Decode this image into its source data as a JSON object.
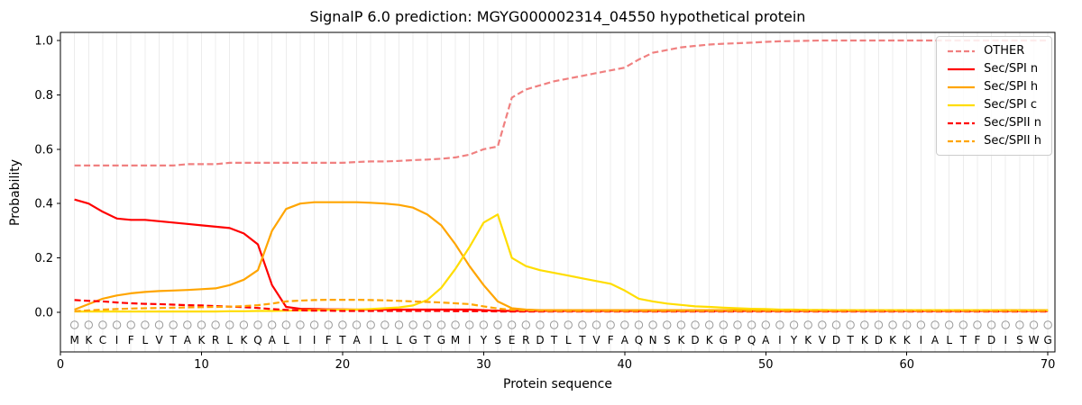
{
  "chart_data": {
    "type": "line",
    "title": "SignalP 6.0 prediction: MGYG000002314_04550 hypothetical protein",
    "xlabel": "Protein sequence",
    "ylabel": "Probability",
    "xlim": [
      0,
      70.5
    ],
    "ylim": [
      -0.146,
      1.03
    ],
    "xticks": [
      0,
      10,
      20,
      30,
      40,
      50,
      60,
      70
    ],
    "yticks": [
      0.0,
      0.2,
      0.4,
      0.6,
      0.8,
      1.0
    ],
    "grid": "vertical line at every residue position",
    "legend_position": "upper right",
    "sequence": "MKCIFLVTAKRLKQALIIFTAILLGTGMIYSERDTLTVFAQNSKDKGPQAIYKVDTKDKKIALTFDISWG",
    "series": [
      {
        "name": "OTHER",
        "color": "#f08080",
        "dash": true,
        "values": [
          0.54,
          0.54,
          0.54,
          0.54,
          0.54,
          0.54,
          0.54,
          0.54,
          0.545,
          0.545,
          0.545,
          0.55,
          0.55,
          0.55,
          0.55,
          0.55,
          0.55,
          0.55,
          0.55,
          0.55,
          0.553,
          0.555,
          0.555,
          0.557,
          0.56,
          0.562,
          0.565,
          0.57,
          0.58,
          0.6,
          0.61,
          0.79,
          0.82,
          0.835,
          0.85,
          0.86,
          0.87,
          0.88,
          0.89,
          0.9,
          0.93,
          0.955,
          0.965,
          0.975,
          0.98,
          0.985,
          0.988,
          0.99,
          0.992,
          0.995,
          0.997,
          0.998,
          0.999,
          1.0,
          1.0,
          1.0,
          1.0,
          1.0,
          1.0,
          1.0,
          1.0,
          1.0,
          1.0,
          1.0,
          1.0,
          1.0,
          1.0,
          1.0,
          1.0,
          1.0
        ]
      },
      {
        "name": "Sec/SPI n",
        "color": "#ff0000",
        "dash": false,
        "values": [
          0.415,
          0.4,
          0.37,
          0.345,
          0.34,
          0.34,
          0.335,
          0.33,
          0.325,
          0.32,
          0.315,
          0.31,
          0.29,
          0.25,
          0.1,
          0.02,
          0.013,
          0.012,
          0.011,
          0.011,
          0.01,
          0.01,
          0.01,
          0.01,
          0.01,
          0.01,
          0.01,
          0.01,
          0.01,
          0.008,
          0.006,
          0.005,
          0.005,
          0.005,
          0.005,
          0.005,
          0.005,
          0.005,
          0.005,
          0.005,
          0.005,
          0.005,
          0.005,
          0.005,
          0.005,
          0.005,
          0.005,
          0.005,
          0.005,
          0.005,
          0.005,
          0.005,
          0.005,
          0.005,
          0.005,
          0.005,
          0.005,
          0.005,
          0.005,
          0.005,
          0.005,
          0.005,
          0.005,
          0.005,
          0.005,
          0.005,
          0.005,
          0.005,
          0.005,
          0.005
        ]
      },
      {
        "name": "Sec/SPI h",
        "color": "#ffa500",
        "dash": false,
        "values": [
          0.01,
          0.03,
          0.05,
          0.062,
          0.07,
          0.075,
          0.078,
          0.08,
          0.082,
          0.085,
          0.088,
          0.1,
          0.12,
          0.155,
          0.3,
          0.38,
          0.4,
          0.405,
          0.405,
          0.405,
          0.405,
          0.403,
          0.4,
          0.395,
          0.385,
          0.36,
          0.32,
          0.25,
          0.17,
          0.1,
          0.04,
          0.015,
          0.01,
          0.008,
          0.008,
          0.008,
          0.008,
          0.008,
          0.008,
          0.008,
          0.008,
          0.008,
          0.008,
          0.008,
          0.008,
          0.008,
          0.008,
          0.008,
          0.008,
          0.008,
          0.008,
          0.008,
          0.008,
          0.008,
          0.008,
          0.008,
          0.008,
          0.008,
          0.008,
          0.008,
          0.008,
          0.008,
          0.008,
          0.008,
          0.008,
          0.008,
          0.008,
          0.008,
          0.008,
          0.008
        ]
      },
      {
        "name": "Sec/SPI c",
        "color": "#ffdd00",
        "dash": false,
        "values": [
          0.003,
          0.003,
          0.003,
          0.003,
          0.003,
          0.003,
          0.003,
          0.003,
          0.003,
          0.003,
          0.003,
          0.004,
          0.004,
          0.005,
          0.005,
          0.006,
          0.007,
          0.008,
          0.009,
          0.01,
          0.01,
          0.012,
          0.015,
          0.018,
          0.025,
          0.045,
          0.09,
          0.16,
          0.24,
          0.33,
          0.36,
          0.2,
          0.17,
          0.155,
          0.145,
          0.135,
          0.125,
          0.115,
          0.105,
          0.08,
          0.05,
          0.04,
          0.032,
          0.027,
          0.022,
          0.02,
          0.017,
          0.015,
          0.013,
          0.012,
          0.01,
          0.01,
          0.009,
          0.009,
          0.008,
          0.008,
          0.008,
          0.008,
          0.008,
          0.008,
          0.008,
          0.008,
          0.008,
          0.008,
          0.008,
          0.008,
          0.007,
          0.007,
          0.007,
          0.007
        ]
      },
      {
        "name": "Sec/SPII n",
        "color": "#ff0000",
        "dash": true,
        "values": [
          0.045,
          0.042,
          0.04,
          0.036,
          0.033,
          0.031,
          0.03,
          0.028,
          0.026,
          0.025,
          0.023,
          0.021,
          0.019,
          0.016,
          0.012,
          0.009,
          0.007,
          0.006,
          0.006,
          0.005,
          0.005,
          0.005,
          0.005,
          0.005,
          0.005,
          0.005,
          0.005,
          0.004,
          0.004,
          0.004,
          0.003,
          0.003,
          0.003,
          0.003,
          0.003,
          0.003,
          0.003,
          0.003,
          0.003,
          0.003,
          0.003,
          0.003,
          0.003,
          0.003,
          0.003,
          0.003,
          0.003,
          0.003,
          0.003,
          0.003,
          0.003,
          0.003,
          0.003,
          0.003,
          0.003,
          0.003,
          0.003,
          0.003,
          0.003,
          0.003,
          0.003,
          0.003,
          0.003,
          0.003,
          0.003,
          0.003,
          0.003,
          0.003,
          0.003,
          0.003
        ]
      },
      {
        "name": "Sec/SPII h",
        "color": "#ffa500",
        "dash": true,
        "values": [
          0.004,
          0.007,
          0.01,
          0.012,
          0.014,
          0.015,
          0.016,
          0.017,
          0.018,
          0.019,
          0.02,
          0.021,
          0.023,
          0.026,
          0.032,
          0.04,
          0.043,
          0.045,
          0.046,
          0.046,
          0.046,
          0.045,
          0.044,
          0.042,
          0.04,
          0.038,
          0.036,
          0.033,
          0.03,
          0.022,
          0.014,
          0.009,
          0.007,
          0.006,
          0.005,
          0.005,
          0.005,
          0.005,
          0.005,
          0.005,
          0.005,
          0.005,
          0.005,
          0.005,
          0.005,
          0.005,
          0.005,
          0.005,
          0.005,
          0.005,
          0.005,
          0.005,
          0.005,
          0.005,
          0.005,
          0.005,
          0.005,
          0.005,
          0.005,
          0.005,
          0.005,
          0.005,
          0.005,
          0.005,
          0.005,
          0.005,
          0.005,
          0.005,
          0.005,
          0.005
        ]
      }
    ]
  }
}
